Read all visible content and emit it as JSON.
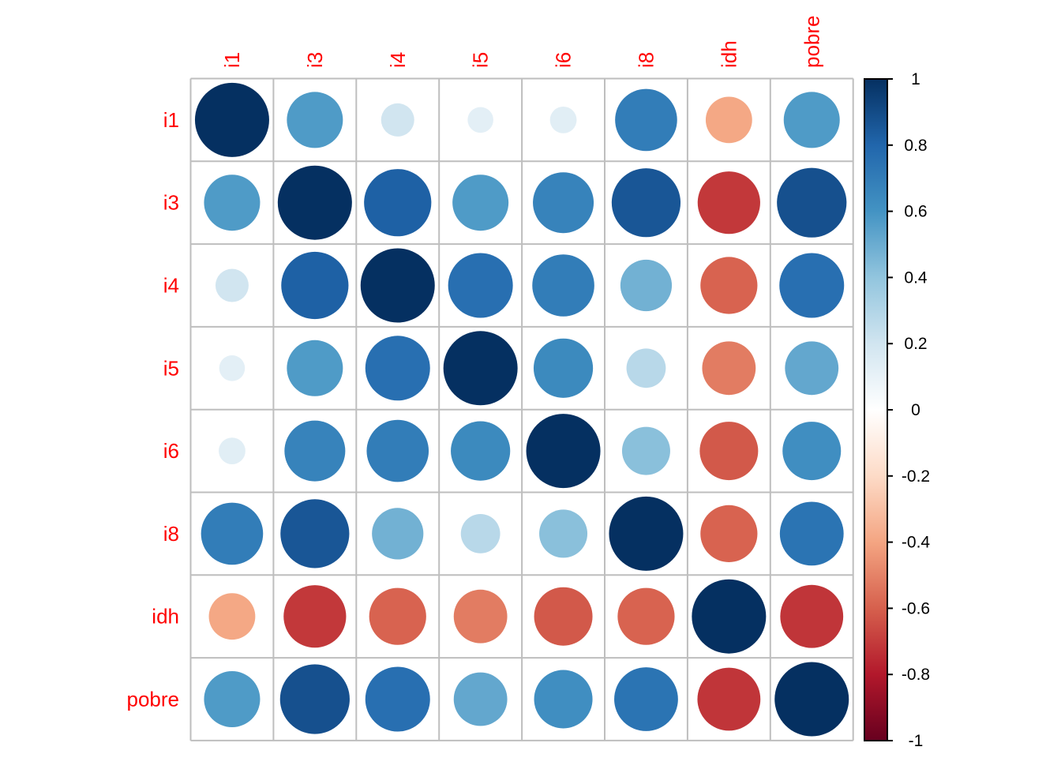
{
  "chart_data": {
    "type": "heatmap",
    "subtype": "correlation-circle-matrix",
    "title": "",
    "variables": [
      "i1",
      "i3",
      "i4",
      "i5",
      "i6",
      "i8",
      "idh",
      "pobre"
    ],
    "matrix": [
      [
        1.0,
        0.57,
        0.2,
        0.12,
        0.13,
        0.7,
        -0.39,
        0.57
      ],
      [
        0.57,
        1.0,
        0.82,
        0.57,
        0.67,
        0.86,
        -0.71,
        0.88
      ],
      [
        0.2,
        0.82,
        1.0,
        0.76,
        0.7,
        0.48,
        -0.59,
        0.76
      ],
      [
        0.12,
        0.57,
        0.76,
        1.0,
        0.64,
        0.28,
        -0.52,
        0.52
      ],
      [
        0.13,
        0.67,
        0.7,
        0.64,
        1.0,
        0.42,
        -0.62,
        0.62
      ],
      [
        0.7,
        0.86,
        0.48,
        0.28,
        0.42,
        1.0,
        -0.59,
        0.74
      ],
      [
        -0.39,
        -0.71,
        -0.59,
        -0.52,
        -0.62,
        -0.59,
        1.0,
        -0.72
      ],
      [
        0.57,
        0.88,
        0.76,
        0.52,
        0.62,
        0.74,
        -0.72,
        1.0
      ]
    ],
    "colorbar": {
      "range": [
        -1,
        1
      ],
      "ticks": [
        "1",
        "0.8",
        "0.6",
        "0.4",
        "0.2",
        "0",
        "-0.2",
        "-0.4",
        "-0.6",
        "-0.8",
        "-1"
      ],
      "palette": [
        "#67001F",
        "#B2182B",
        "#D6604D",
        "#F4A582",
        "#FDDBC7",
        "#FFFFFF",
        "#D1E5F0",
        "#92C5DE",
        "#4393C3",
        "#2166AC",
        "#053061"
      ]
    },
    "label_color": "#ff0000",
    "grid_color": "#bebebe",
    "legend_position": "right"
  }
}
